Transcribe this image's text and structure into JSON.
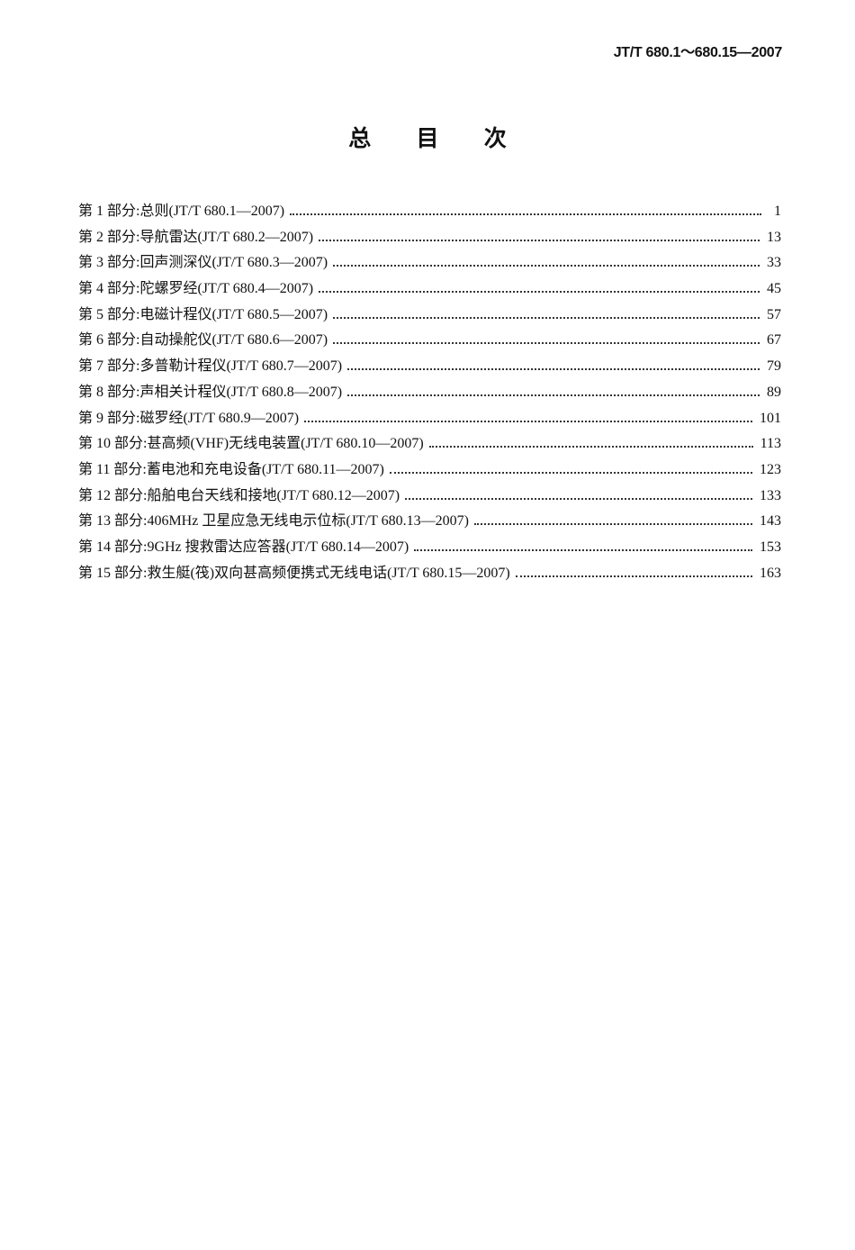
{
  "header": {
    "code": "JT/T 680.1～680.15—2007"
  },
  "title": "总 目 次",
  "toc": [
    {
      "label": "第 1 部分:总则(JT/T 680.1—2007)",
      "page": "1"
    },
    {
      "label": "第 2 部分:导航雷达(JT/T 680.2—2007)",
      "page": "13"
    },
    {
      "label": "第 3 部分:回声测深仪(JT/T 680.3—2007)",
      "page": "33"
    },
    {
      "label": "第 4 部分:陀螺罗经(JT/T 680.4—2007)",
      "page": "45"
    },
    {
      "label": "第 5 部分:电磁计程仪(JT/T 680.5—2007)",
      "page": "57"
    },
    {
      "label": "第 6 部分:自动操舵仪(JT/T 680.6—2007)",
      "page": "67"
    },
    {
      "label": "第 7 部分:多普勒计程仪(JT/T 680.7—2007)",
      "page": "79"
    },
    {
      "label": "第 8 部分:声相关计程仪(JT/T 680.8—2007)",
      "page": "89"
    },
    {
      "label": "第 9 部分:磁罗经(JT/T 680.9—2007)",
      "page": "101"
    },
    {
      "label": "第 10 部分:甚高频(VHF)无线电装置(JT/T 680.10—2007)",
      "page": "113"
    },
    {
      "label": "第 11 部分:蓄电池和充电设备(JT/T 680.11—2007)",
      "page": "123"
    },
    {
      "label": "第 12 部分:船舶电台天线和接地(JT/T 680.12—2007)",
      "page": "133"
    },
    {
      "label": "第 13 部分:406MHz 卫星应急无线电示位标(JT/T 680.13—2007)",
      "page": "143"
    },
    {
      "label": "第 14 部分:9GHz 搜救雷达应答器(JT/T 680.14—2007)",
      "page": "153"
    },
    {
      "label": "第 15 部分:救生艇(筏)双向甚高频便携式无线电话(JT/T 680.15—2007)",
      "page": "163"
    }
  ]
}
